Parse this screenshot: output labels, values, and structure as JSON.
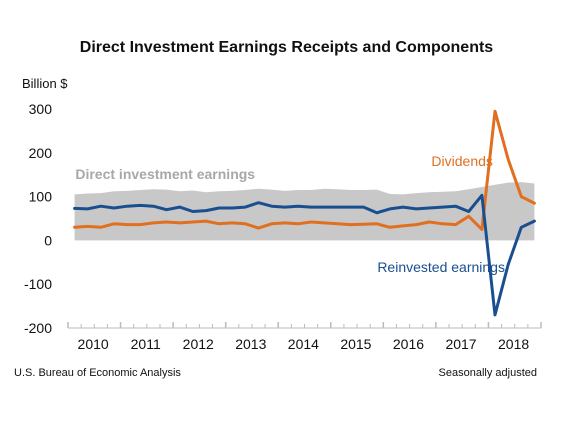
{
  "chart_data": {
    "type": "line",
    "title": "Direct Investment Earnings Receipts and Components",
    "ylabel": "Billion $",
    "ylim": [
      -200,
      300
    ],
    "yticks": [
      300,
      200,
      100,
      0,
      -100,
      -200
    ],
    "xlim": [
      2009.75,
      2018.75
    ],
    "xtick_labels": [
      "2010",
      "2011",
      "2012",
      "2013",
      "2014",
      "2015",
      "2016",
      "2017",
      "2018"
    ],
    "xtick_positions": [
      2010,
      2011,
      2012,
      2013,
      2014,
      2015,
      2016,
      2017,
      2018
    ],
    "x": [
      2009.875,
      2010.125,
      2010.375,
      2010.625,
      2010.875,
      2011.125,
      2011.375,
      2011.625,
      2011.875,
      2012.125,
      2012.375,
      2012.625,
      2012.875,
      2013.125,
      2013.375,
      2013.625,
      2013.875,
      2014.125,
      2014.375,
      2014.625,
      2014.875,
      2015.125,
      2015.375,
      2015.625,
      2015.875,
      2016.125,
      2016.375,
      2016.625,
      2016.875,
      2017.125,
      2017.375,
      2017.625,
      2017.875,
      2018.125,
      2018.375,
      2018.625
    ],
    "series": [
      {
        "name": "Direct investment earnings",
        "style": "area",
        "color": "#c8c8c8",
        "values": [
          105,
          107,
          108,
          112,
          113,
          115,
          117,
          116,
          112,
          114,
          110,
          112,
          113,
          115,
          118,
          116,
          113,
          115,
          115,
          118,
          117,
          115,
          115,
          116,
          106,
          105,
          108,
          110,
          111,
          112,
          117,
          122,
          127,
          132,
          133,
          130
        ]
      },
      {
        "name": "Dividends",
        "style": "line",
        "color": "#e07020",
        "values": [
          30,
          32,
          30,
          38,
          36,
          36,
          40,
          42,
          40,
          42,
          44,
          38,
          40,
          38,
          28,
          38,
          40,
          38,
          42,
          40,
          38,
          36,
          37,
          38,
          30,
          33,
          36,
          42,
          38,
          36,
          55,
          25,
          295,
          185,
          100,
          85
        ]
      },
      {
        "name": "Reinvested earnings",
        "style": "line",
        "color": "#1a4f8f",
        "values": [
          73,
          72,
          78,
          74,
          78,
          80,
          78,
          70,
          76,
          66,
          68,
          74,
          74,
          76,
          86,
          78,
          76,
          78,
          76,
          76,
          76,
          76,
          76,
          63,
          72,
          76,
          72,
          74,
          76,
          78,
          66,
          103,
          -170,
          -55,
          30,
          44
        ]
      }
    ],
    "annotations": [
      {
        "text": "Direct investment earnings",
        "color": "#a8a8a8",
        "x": 2011.6,
        "y": 140
      },
      {
        "text": "Dividends",
        "color": "#e07020",
        "x": 2017.25,
        "y": 170
      },
      {
        "text": "Reinvested earnings",
        "color": "#1a4f8f",
        "x": 2016.85,
        "y": -72
      }
    ],
    "grid": false,
    "legend": "none"
  },
  "footer": {
    "source": "U.S. Bureau of Economic Analysis",
    "note": "Seasonally adjusted"
  }
}
